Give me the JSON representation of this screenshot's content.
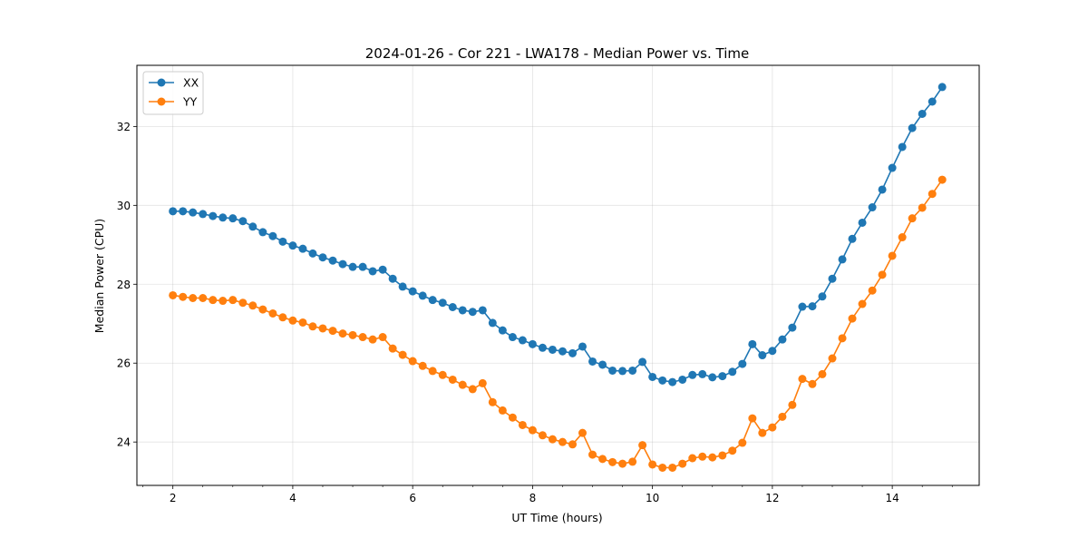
{
  "chart_data": {
    "type": "line",
    "title": "2024-01-26 - Cor 221 - LWA178 - Median Power vs. Time",
    "xlabel": "UT Time (hours)",
    "ylabel": "Median Power (CPU)",
    "xlim": [
      1.4,
      15.45
    ],
    "ylim": [
      22.9,
      33.55
    ],
    "xticks": [
      2,
      4,
      6,
      8,
      10,
      12,
      14
    ],
    "xtick_labels": [
      "2",
      "4",
      "6",
      "8",
      "10",
      "12",
      "14"
    ],
    "yticks": [
      24,
      26,
      28,
      30,
      32
    ],
    "ytick_labels": [
      "24",
      "26",
      "28",
      "30",
      "32"
    ],
    "x_minor_step": 0.5,
    "grid": true,
    "legend_position": "top-left",
    "x": [
      2.0,
      2.167,
      2.333,
      2.5,
      2.667,
      2.833,
      3.0,
      3.167,
      3.333,
      3.5,
      3.667,
      3.833,
      4.0,
      4.167,
      4.333,
      4.5,
      4.667,
      4.833,
      5.0,
      5.167,
      5.333,
      5.5,
      5.667,
      5.833,
      6.0,
      6.167,
      6.333,
      6.5,
      6.667,
      6.833,
      7.0,
      7.167,
      7.333,
      7.5,
      7.667,
      7.833,
      8.0,
      8.167,
      8.333,
      8.5,
      8.667,
      8.833,
      9.0,
      9.167,
      9.333,
      9.5,
      9.667,
      9.833,
      10.0,
      10.167,
      10.333,
      10.5,
      10.667,
      10.833,
      11.0,
      11.167,
      11.333,
      11.5,
      11.667,
      11.833,
      12.0,
      12.167,
      12.333,
      12.5,
      12.667,
      12.833,
      13.0,
      13.167,
      13.333,
      13.5,
      13.667,
      13.833,
      14.0,
      14.167,
      14.333,
      14.5,
      14.667,
      14.833
    ],
    "series": [
      {
        "name": "XX",
        "color": "#1f77b4",
        "values": [
          29.85,
          29.85,
          29.82,
          29.78,
          29.73,
          29.69,
          29.67,
          29.6,
          29.46,
          29.32,
          29.22,
          29.08,
          28.98,
          28.9,
          28.78,
          28.68,
          28.6,
          28.51,
          28.44,
          28.44,
          28.33,
          28.37,
          28.14,
          27.94,
          27.82,
          27.71,
          27.6,
          27.53,
          27.42,
          27.34,
          27.3,
          27.34,
          27.02,
          26.83,
          26.66,
          26.58,
          26.48,
          26.39,
          26.34,
          26.3,
          26.25,
          26.42,
          26.04,
          25.96,
          25.81,
          25.8,
          25.81,
          26.03,
          25.65,
          25.56,
          25.52,
          25.58,
          25.7,
          25.72,
          25.64,
          25.67,
          25.78,
          25.98,
          26.48,
          26.2,
          26.31,
          26.6,
          26.9,
          27.43,
          27.44,
          27.69,
          28.14,
          28.63,
          29.15,
          29.56,
          29.95,
          30.4,
          30.95,
          31.48,
          31.96,
          32.32,
          32.63,
          33.0
        ]
      },
      {
        "name": "YY",
        "color": "#ff7f0e",
        "values": [
          27.72,
          27.68,
          27.65,
          27.65,
          27.6,
          27.58,
          27.6,
          27.53,
          27.46,
          27.36,
          27.26,
          27.16,
          27.08,
          27.03,
          26.93,
          26.88,
          26.82,
          26.75,
          26.71,
          26.66,
          26.6,
          26.66,
          26.37,
          26.21,
          26.05,
          25.93,
          25.8,
          25.7,
          25.58,
          25.45,
          25.34,
          25.49,
          25.01,
          24.8,
          24.62,
          24.43,
          24.3,
          24.17,
          24.07,
          24.0,
          23.94,
          24.23,
          23.68,
          23.57,
          23.49,
          23.45,
          23.5,
          23.92,
          23.43,
          23.35,
          23.35,
          23.45,
          23.59,
          23.63,
          23.61,
          23.66,
          23.78,
          23.98,
          24.6,
          24.23,
          24.37,
          24.64,
          24.94,
          25.6,
          25.47,
          25.72,
          26.12,
          26.63,
          27.13,
          27.5,
          27.84,
          28.24,
          28.72,
          29.19,
          29.67,
          29.94,
          30.29,
          30.65
        ]
      }
    ]
  }
}
